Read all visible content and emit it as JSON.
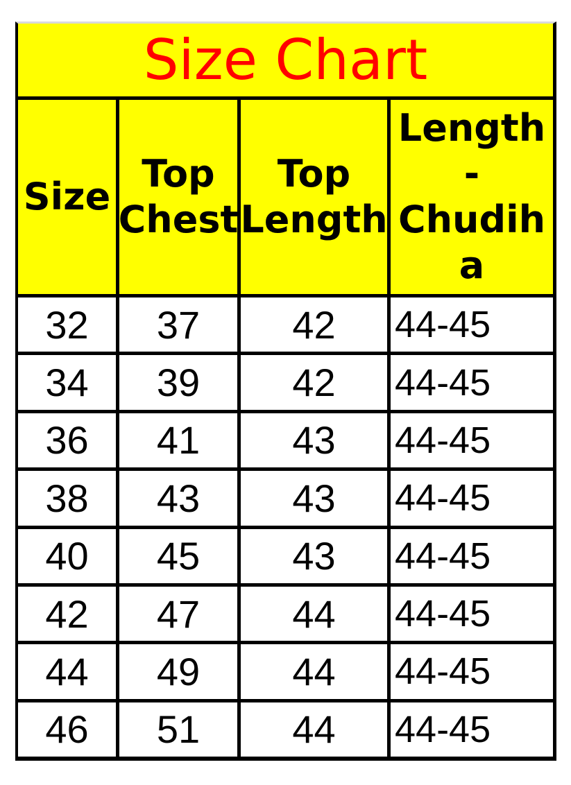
{
  "title": "Size Chart",
  "table": {
    "headers": [
      "Size",
      "Top\nChest",
      "Top\nLength",
      "Bottom\nLength-\nChudiha\nr"
    ],
    "rows": [
      [
        "32",
        "37",
        "42",
        "44-45"
      ],
      [
        "34",
        "39",
        "42",
        "44-45"
      ],
      [
        "36",
        "41",
        "43",
        "44-45"
      ],
      [
        "38",
        "43",
        "43",
        "44-45"
      ],
      [
        "40",
        "45",
        "43",
        "44-45"
      ],
      [
        "42",
        "47",
        "44",
        "44-45"
      ],
      [
        "44",
        "49",
        "44",
        "44-45"
      ],
      [
        "46",
        "51",
        "44",
        "44-45"
      ]
    ]
  },
  "colors": {
    "title_color": "#ff0000",
    "header_bg": "#ffff00",
    "cell_bg": "#ffffff",
    "grid_color": "#000000",
    "top_edge_color": "#d9d9d9"
  },
  "chart_data": {
    "type": "table",
    "title": "Size Chart",
    "columns": [
      "Size",
      "Top Chest",
      "Top Length",
      "Bottom Length-Chudihar"
    ],
    "rows": [
      [
        32,
        37,
        42,
        "44-45"
      ],
      [
        34,
        39,
        42,
        "44-45"
      ],
      [
        36,
        41,
        43,
        "44-45"
      ],
      [
        38,
        43,
        43,
        "44-45"
      ],
      [
        40,
        45,
        43,
        "44-45"
      ],
      [
        42,
        47,
        44,
        "44-45"
      ],
      [
        44,
        49,
        44,
        "44-45"
      ],
      [
        46,
        51,
        44,
        "44-45"
      ]
    ]
  }
}
